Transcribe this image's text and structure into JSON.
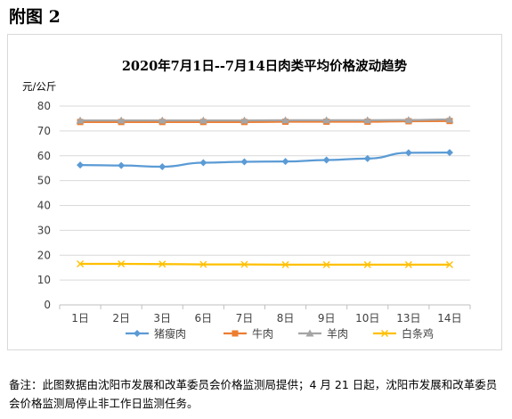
{
  "figure_label": "附图 2",
  "note": "备注：此图数据由沈阳市发展和改革委员会价格监测局提供；4 月 21 日起，沈阳市发展和改革委员会价格监测局停止非工作日监测任务。",
  "chart_data": {
    "type": "line",
    "title": "2020年7月1日--7月14日肉类平均价格波动趋势",
    "unit_label": "元/公斤",
    "xlabel": "",
    "ylabel": "",
    "categories": [
      "1日",
      "2日",
      "3日",
      "6日",
      "7日",
      "8日",
      "9日",
      "10日",
      "13日",
      "14日"
    ],
    "y_ticks": [
      "0",
      "10",
      "20",
      "30",
      "40",
      "50",
      "60",
      "70",
      "80"
    ],
    "ylim": [
      0,
      80
    ],
    "grid": true,
    "legend_position": "bottom",
    "series": [
      {
        "name": "猪瘦肉",
        "color": "#5b9bd5",
        "marker": "diamond",
        "values": [
          56.3,
          56.1,
          55.6,
          57.2,
          57.6,
          57.7,
          58.3,
          58.9,
          61.2,
          61.3
        ]
      },
      {
        "name": "牛肉",
        "color": "#ed7d31",
        "marker": "square",
        "values": [
          73.6,
          73.6,
          73.6,
          73.6,
          73.6,
          73.7,
          73.7,
          73.7,
          73.9,
          74.0
        ]
      },
      {
        "name": "羊肉",
        "color": "#a5a5a5",
        "marker": "triangle",
        "values": [
          74.2,
          74.2,
          74.2,
          74.2,
          74.2,
          74.3,
          74.3,
          74.3,
          74.4,
          74.6
        ]
      },
      {
        "name": "白条鸡",
        "color": "#ffc000",
        "marker": "x",
        "values": [
          16.5,
          16.5,
          16.4,
          16.3,
          16.3,
          16.2,
          16.2,
          16.2,
          16.2,
          16.2
        ]
      }
    ]
  }
}
